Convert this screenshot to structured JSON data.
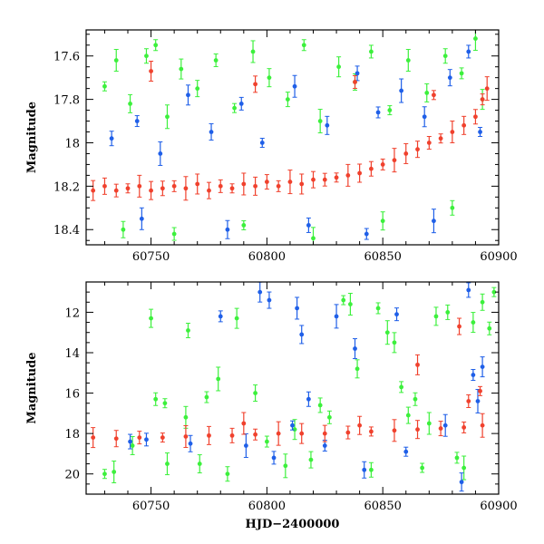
{
  "chart_data": [
    {
      "type": "scatter",
      "title": "",
      "xlabel": "",
      "ylabel": "Magnitude",
      "xlim": [
        60722,
        60900
      ],
      "ylim": [
        18.47,
        17.48
      ],
      "y_inverted": true,
      "xticks": [
        60750,
        60800,
        60850,
        60900
      ],
      "yticks": [
        17.6,
        17.8,
        18,
        18.2,
        18.4
      ],
      "ytick_labels": [
        "17.6",
        "17.8",
        "18",
        "18.2",
        "18.4"
      ],
      "grid": false,
      "legend": "none",
      "series": [
        {
          "color": "#3cf03c",
          "points": [
            [
              60730,
              17.74
            ],
            [
              60735,
              17.62
            ],
            [
              60741,
              17.82
            ],
            [
              60748,
              17.6
            ],
            [
              60752,
              17.55
            ],
            [
              60757,
              17.88
            ],
            [
              60763,
              17.66
            ],
            [
              60770,
              17.75
            ],
            [
              60778,
              17.62
            ],
            [
              60786,
              17.84
            ],
            [
              60794,
              17.58
            ],
            [
              60801,
              17.7
            ],
            [
              60809,
              17.8
            ],
            [
              60816,
              17.55
            ],
            [
              60823,
              17.9
            ],
            [
              60831,
              17.65
            ],
            [
              60838,
              17.72
            ],
            [
              60845,
              17.58
            ],
            [
              60853,
              17.85
            ],
            [
              60861,
              17.62
            ],
            [
              60869,
              17.77
            ],
            [
              60877,
              17.6
            ],
            [
              60884,
              17.68
            ],
            [
              60890,
              17.52
            ],
            [
              60893,
              17.8
            ],
            [
              60738,
              18.4
            ],
            [
              60760,
              18.42
            ],
            [
              60790,
              18.38
            ],
            [
              60820,
              18.44
            ],
            [
              60850,
              18.36
            ],
            [
              60880,
              18.3
            ]
          ]
        },
        {
          "color": "#1f5fe8",
          "points": [
            [
              60733,
              17.98
            ],
            [
              60744,
              17.9
            ],
            [
              60754,
              18.05
            ],
            [
              60766,
              17.78
            ],
            [
              60776,
              17.95
            ],
            [
              60789,
              17.82
            ],
            [
              60798,
              18.0
            ],
            [
              60812,
              17.74
            ],
            [
              60826,
              17.92
            ],
            [
              60839,
              17.68
            ],
            [
              60848,
              17.86
            ],
            [
              60858,
              17.76
            ],
            [
              60868,
              17.88
            ],
            [
              60879,
              17.7
            ],
            [
              60887,
              17.58
            ],
            [
              60892,
              17.95
            ],
            [
              60746,
              18.35
            ],
            [
              60783,
              18.4
            ],
            [
              60818,
              18.38
            ],
            [
              60843,
              18.42
            ],
            [
              60872,
              18.36
            ]
          ]
        },
        {
          "color": "#f0412d",
          "points": [
            [
              60725,
              18.22
            ],
            [
              60730,
              18.2
            ],
            [
              60735,
              18.22
            ],
            [
              60740,
              18.21
            ],
            [
              60745,
              18.2
            ],
            [
              60750,
              18.22
            ],
            [
              60755,
              18.21
            ],
            [
              60760,
              18.2
            ],
            [
              60765,
              18.21
            ],
            [
              60770,
              18.19
            ],
            [
              60775,
              18.22
            ],
            [
              60780,
              18.2
            ],
            [
              60785,
              18.21
            ],
            [
              60790,
              18.19
            ],
            [
              60795,
              18.2
            ],
            [
              60800,
              18.18
            ],
            [
              60805,
              18.2
            ],
            [
              60810,
              18.18
            ],
            [
              60815,
              18.19
            ],
            [
              60820,
              18.17
            ],
            [
              60825,
              18.17
            ],
            [
              60830,
              18.16
            ],
            [
              60835,
              18.15
            ],
            [
              60840,
              18.14
            ],
            [
              60845,
              18.12
            ],
            [
              60850,
              18.1
            ],
            [
              60855,
              18.08
            ],
            [
              60860,
              18.05
            ],
            [
              60865,
              18.03
            ],
            [
              60870,
              18.0
            ],
            [
              60875,
              17.98
            ],
            [
              60880,
              17.95
            ],
            [
              60885,
              17.92
            ],
            [
              60890,
              17.88
            ],
            [
              60893,
              17.8
            ],
            [
              60895,
              17.75
            ],
            [
              60750,
              17.67
            ],
            [
              60795,
              17.73
            ],
            [
              60838,
              17.72
            ],
            [
              60872,
              17.78
            ]
          ]
        }
      ]
    },
    {
      "type": "scatter",
      "title": "",
      "xlabel": "HJD−2400000",
      "ylabel": "Magnitude",
      "xlim": [
        60722,
        60900
      ],
      "ylim": [
        21.0,
        10.5
      ],
      "y_inverted": true,
      "xticks": [
        60750,
        60800,
        60850,
        60900
      ],
      "yticks": [
        12,
        14,
        16,
        18,
        20
      ],
      "ytick_labels": [
        "12",
        "14",
        "16",
        "18",
        "20"
      ],
      "grid": false,
      "legend": "none",
      "series": [
        {
          "color": "#3cf03c",
          "points": [
            [
              60730,
              20.0
            ],
            [
              60734,
              19.9
            ],
            [
              60750,
              12.3
            ],
            [
              60766,
              12.9
            ],
            [
              60774,
              16.2
            ],
            [
              60779,
              15.3
            ],
            [
              60787,
              12.3
            ],
            [
              60795,
              16.0
            ],
            [
              60752,
              16.3
            ],
            [
              60756,
              16.5
            ],
            [
              60765,
              17.2
            ],
            [
              60771,
              19.5
            ],
            [
              60783,
              20.0
            ],
            [
              60800,
              18.4
            ],
            [
              60808,
              19.6
            ],
            [
              60812,
              17.8
            ],
            [
              60819,
              19.3
            ],
            [
              60827,
              17.2
            ],
            [
              60833,
              11.4
            ],
            [
              60836,
              11.6
            ],
            [
              60839,
              14.8
            ],
            [
              60845,
              19.8
            ],
            [
              60848,
              11.8
            ],
            [
              60852,
              13.0
            ],
            [
              60855,
              13.5
            ],
            [
              60861,
              17.1
            ],
            [
              60864,
              16.3
            ],
            [
              60867,
              19.7
            ],
            [
              60870,
              17.5
            ],
            [
              60873,
              12.2
            ],
            [
              60878,
              12.0
            ],
            [
              60882,
              19.2
            ],
            [
              60885,
              19.7
            ],
            [
              60889,
              12.5
            ],
            [
              60893,
              11.5
            ],
            [
              60896,
              12.8
            ],
            [
              60898,
              11.0
            ],
            [
              60757,
              19.5
            ],
            [
              60742,
              18.6
            ],
            [
              60823,
              16.6
            ],
            [
              60858,
              15.7
            ]
          ]
        },
        {
          "color": "#1f5fe8",
          "points": [
            [
              60741,
              18.4
            ],
            [
              60780,
              12.2
            ],
            [
              60791,
              18.6
            ],
            [
              60797,
              11.0
            ],
            [
              60801,
              11.4
            ],
            [
              60803,
              19.2
            ],
            [
              60811,
              17.6
            ],
            [
              60813,
              11.8
            ],
            [
              60815,
              13.1
            ],
            [
              60818,
              16.3
            ],
            [
              60825,
              18.6
            ],
            [
              60830,
              12.2
            ],
            [
              60838,
              13.8
            ],
            [
              60842,
              19.8
            ],
            [
              60856,
              12.1
            ],
            [
              60860,
              18.9
            ],
            [
              60877,
              17.6
            ],
            [
              60884,
              20.4
            ],
            [
              60887,
              10.9
            ],
            [
              60889,
              15.1
            ],
            [
              60891,
              16.4
            ],
            [
              60893,
              14.7
            ],
            [
              60767,
              18.5
            ],
            [
              60748,
              18.3
            ]
          ]
        },
        {
          "color": "#f0412d",
          "points": [
            [
              60725,
              18.2
            ],
            [
              60735,
              18.25
            ],
            [
              60745,
              18.2
            ],
            [
              60755,
              18.2
            ],
            [
              60765,
              18.15
            ],
            [
              60775,
              18.1
            ],
            [
              60785,
              18.1
            ],
            [
              60795,
              18.05
            ],
            [
              60805,
              18.0
            ],
            [
              60815,
              18.0
            ],
            [
              60825,
              18.0
            ],
            [
              60835,
              17.95
            ],
            [
              60845,
              17.9
            ],
            [
              60855,
              17.85
            ],
            [
              60865,
              17.8
            ],
            [
              60875,
              17.75
            ],
            [
              60885,
              17.7
            ],
            [
              60893,
              17.6
            ],
            [
              60865,
              14.6
            ],
            [
              60883,
              12.7
            ],
            [
              60887,
              16.4
            ],
            [
              60892,
              15.9
            ],
            [
              60790,
              17.5
            ],
            [
              60840,
              17.6
            ]
          ]
        }
      ]
    }
  ]
}
